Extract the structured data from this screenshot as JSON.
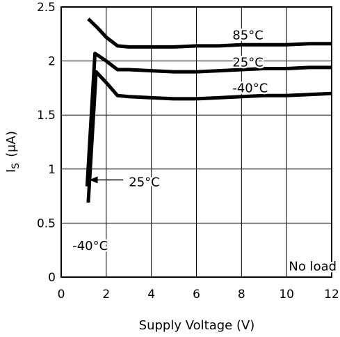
{
  "chart_data": {
    "type": "line",
    "title": "",
    "xlabel": "Supply Voltage (V)",
    "ylabel": "I",
    "ylabel_sub": "S",
    "ylabel_unit": "(μA)",
    "xlim": [
      0,
      12
    ],
    "ylim": [
      0,
      2.5
    ],
    "x_ticks": [
      0,
      2,
      4,
      6,
      8,
      10,
      12
    ],
    "y_ticks": [
      0,
      0.5,
      1,
      1.5,
      2,
      2.5
    ],
    "x_tick_labels": [
      "0",
      "2",
      "4",
      "6",
      "8",
      "10",
      "12"
    ],
    "y_tick_labels": [
      "0",
      "0.5",
      "1",
      "1.5",
      "2",
      "2.5"
    ],
    "grid": true,
    "legend": "none",
    "series": [
      {
        "name": "85°C",
        "x": [
          1.2,
          1.6,
          2.0,
          2.5,
          3.0,
          4.0,
          5.0,
          6.0,
          7.0,
          8.0,
          9.0,
          10.0,
          11.0,
          12.0
        ],
        "y": [
          2.39,
          2.31,
          2.22,
          2.14,
          2.13,
          2.13,
          2.13,
          2.14,
          2.14,
          2.15,
          2.15,
          2.15,
          2.16,
          2.16
        ]
      },
      {
        "name": "25°C",
        "x": [
          1.15,
          1.5,
          2.0,
          2.5,
          3.0,
          4.0,
          5.0,
          6.0,
          7.0,
          8.0,
          9.0,
          10.0,
          11.0,
          12.0
        ],
        "y": [
          0.84,
          2.07,
          2.0,
          1.92,
          1.92,
          1.91,
          1.9,
          1.9,
          1.91,
          1.92,
          1.93,
          1.93,
          1.94,
          1.94
        ]
      },
      {
        "name": "-40°C",
        "x": [
          1.2,
          1.55,
          2.0,
          2.5,
          3.0,
          4.0,
          5.0,
          6.0,
          7.0,
          8.0,
          9.0,
          10.0,
          11.0,
          12.0
        ],
        "y": [
          0.69,
          1.9,
          1.8,
          1.68,
          1.67,
          1.66,
          1.65,
          1.65,
          1.66,
          1.67,
          1.68,
          1.68,
          1.69,
          1.7
        ]
      }
    ],
    "annotations": [
      {
        "text": "85°C",
        "x": 7.6,
        "y": 2.2
      },
      {
        "text": "25°C",
        "x": 7.6,
        "y": 1.95
      },
      {
        "text": "-40°C",
        "x": 7.6,
        "y": 1.71
      },
      {
        "text": "25°C",
        "x": 3.0,
        "y": 0.84
      },
      {
        "text": "-40°C",
        "x": 0.5,
        "y": 0.25
      },
      {
        "text": "No load",
        "x": 10.1,
        "y": 0.06
      }
    ],
    "arrow": {
      "from": [
        2.75,
        0.9
      ],
      "to": [
        1.25,
        0.9
      ]
    }
  }
}
